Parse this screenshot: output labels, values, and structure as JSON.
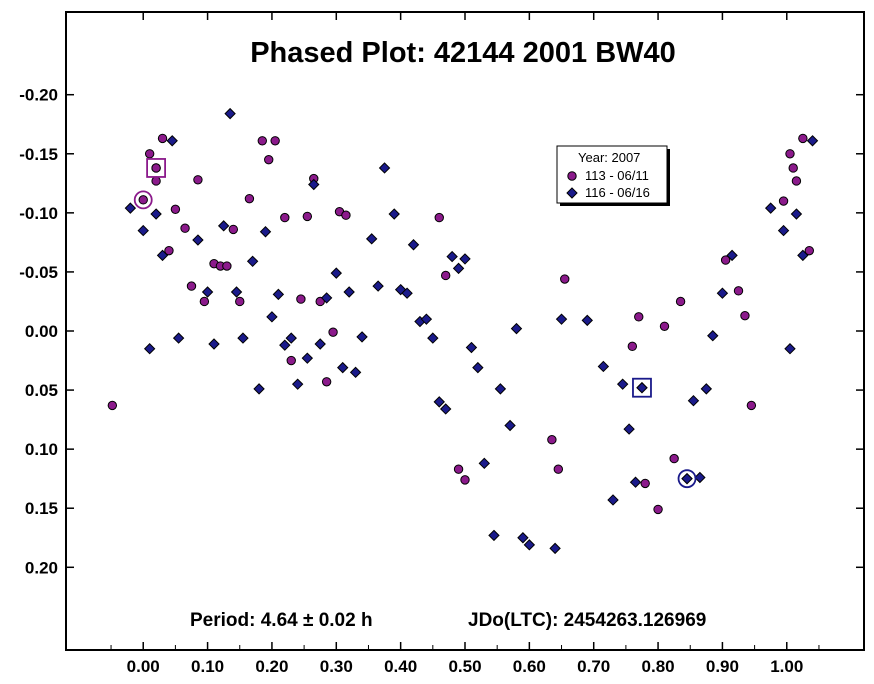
{
  "chart_data": {
    "type": "scatter",
    "title": "Phased Plot: 42144 2001 BW40",
    "footer_period": "Period: 4.64 ± 0.02 h",
    "footer_epoch": "JDo(LTC): 2454263.126969",
    "xlim": [
      -0.12,
      1.12
    ],
    "ylim": [
      -0.27,
      0.27
    ],
    "y_inverted": true,
    "x_ticks": [
      "0.00",
      "0.10",
      "0.20",
      "0.30",
      "0.40",
      "0.50",
      "0.60",
      "0.70",
      "0.80",
      "0.90",
      "1.00"
    ],
    "x_tick_values": [
      0,
      0.1,
      0.2,
      0.3,
      0.4,
      0.5,
      0.6,
      0.7,
      0.8,
      0.9,
      1.0
    ],
    "y_ticks": [
      "-0.20",
      "-0.15",
      "-0.10",
      "-0.05",
      "0.00",
      "0.05",
      "0.10",
      "0.15",
      "0.20"
    ],
    "y_tick_values": [
      -0.2,
      -0.15,
      -0.1,
      -0.05,
      0,
      0.05,
      0.1,
      0.15,
      0.2
    ],
    "grid": false,
    "legend": {
      "title": "Year: 2007",
      "placement": "upper-center-right",
      "entries": [
        {
          "label": "113 - 06/11",
          "marker": "circle",
          "color": "#8B1A8B"
        },
        {
          "label": "116 - 06/16",
          "marker": "diamond",
          "color": "#1A1A8A"
        }
      ]
    },
    "series": [
      {
        "name": "113 - 06/11",
        "marker": "circle",
        "color": "#8B1A8B",
        "points": [
          [
            -0.048,
            0.063
          ],
          [
            0.01,
            -0.15
          ],
          [
            0.02,
            -0.138
          ],
          [
            0.02,
            -0.127
          ],
          [
            0.03,
            -0.163
          ],
          [
            0.04,
            -0.068
          ],
          [
            0.05,
            -0.103
          ],
          [
            0.065,
            -0.087
          ],
          [
            0.075,
            -0.038
          ],
          [
            0.085,
            -0.128
          ],
          [
            0.095,
            -0.025
          ],
          [
            0.11,
            -0.057
          ],
          [
            0.12,
            -0.055
          ],
          [
            0.13,
            -0.055
          ],
          [
            0.14,
            -0.086
          ],
          [
            0.15,
            -0.025
          ],
          [
            0.165,
            -0.112
          ],
          [
            0.185,
            -0.161
          ],
          [
            0.195,
            -0.145
          ],
          [
            0.205,
            -0.161
          ],
          [
            0.22,
            -0.096
          ],
          [
            0.23,
            0.025
          ],
          [
            0.245,
            -0.027
          ],
          [
            0.255,
            -0.097
          ],
          [
            0.265,
            -0.129
          ],
          [
            0.275,
            -0.025
          ],
          [
            0.285,
            0.043
          ],
          [
            0.295,
            0.001
          ],
          [
            0.305,
            -0.101
          ],
          [
            0.315,
            -0.098
          ],
          [
            0.46,
            -0.096
          ],
          [
            0.47,
            -0.047
          ],
          [
            0.49,
            0.117
          ],
          [
            0.5,
            0.126
          ],
          [
            0.635,
            0.092
          ],
          [
            0.645,
            0.117
          ],
          [
            0.655,
            -0.044
          ],
          [
            0.76,
            0.013
          ],
          [
            0.77,
            -0.012
          ],
          [
            0.78,
            0.129
          ],
          [
            0.8,
            0.151
          ],
          [
            0.81,
            -0.004
          ],
          [
            0.825,
            0.108
          ],
          [
            0.835,
            -0.025
          ],
          [
            0.905,
            -0.06
          ],
          [
            0.925,
            -0.034
          ],
          [
            0.935,
            -0.013
          ],
          [
            0.945,
            0.063
          ],
          [
            0.995,
            -0.11
          ],
          [
            1.005,
            -0.15
          ],
          [
            1.01,
            -0.138
          ],
          [
            1.015,
            -0.127
          ],
          [
            1.025,
            -0.163
          ],
          [
            1.035,
            -0.068
          ]
        ],
        "highlight_circle": [
          0.0,
          -0.111
        ],
        "highlight_square": [
          0.02,
          -0.138
        ]
      },
      {
        "name": "116 - 06/16",
        "marker": "diamond",
        "color": "#1A1A8A",
        "points": [
          [
            -0.02,
            -0.104
          ],
          [
            0.0,
            -0.085
          ],
          [
            0.01,
            0.015
          ],
          [
            0.02,
            -0.099
          ],
          [
            0.03,
            -0.064
          ],
          [
            0.045,
            -0.161
          ],
          [
            0.055,
            0.006
          ],
          [
            0.085,
            -0.077
          ],
          [
            0.1,
            -0.033
          ],
          [
            0.11,
            0.011
          ],
          [
            0.125,
            -0.089
          ],
          [
            0.135,
            -0.184
          ],
          [
            0.145,
            -0.033
          ],
          [
            0.155,
            0.006
          ],
          [
            0.17,
            -0.059
          ],
          [
            0.18,
            0.049
          ],
          [
            0.19,
            -0.084
          ],
          [
            0.2,
            -0.012
          ],
          [
            0.21,
            -0.031
          ],
          [
            0.22,
            0.012
          ],
          [
            0.23,
            0.006
          ],
          [
            0.24,
            0.045
          ],
          [
            0.255,
            0.023
          ],
          [
            0.265,
            -0.124
          ],
          [
            0.275,
            0.011
          ],
          [
            0.285,
            -0.028
          ],
          [
            0.3,
            -0.049
          ],
          [
            0.31,
            0.031
          ],
          [
            0.32,
            -0.033
          ],
          [
            0.33,
            0.035
          ],
          [
            0.34,
            0.005
          ],
          [
            0.355,
            -0.078
          ],
          [
            0.365,
            -0.038
          ],
          [
            0.375,
            -0.138
          ],
          [
            0.39,
            -0.099
          ],
          [
            0.4,
            -0.035
          ],
          [
            0.41,
            -0.032
          ],
          [
            0.42,
            -0.073
          ],
          [
            0.43,
            -0.008
          ],
          [
            0.44,
            -0.01
          ],
          [
            0.45,
            0.006
          ],
          [
            0.46,
            0.06
          ],
          [
            0.47,
            0.066
          ],
          [
            0.48,
            -0.063
          ],
          [
            0.49,
            -0.053
          ],
          [
            0.5,
            -0.061
          ],
          [
            0.51,
            0.014
          ],
          [
            0.52,
            0.031
          ],
          [
            0.53,
            0.112
          ],
          [
            0.545,
            0.173
          ],
          [
            0.555,
            0.049
          ],
          [
            0.57,
            0.08
          ],
          [
            0.58,
            -0.002
          ],
          [
            0.59,
            0.175
          ],
          [
            0.6,
            0.181
          ],
          [
            0.64,
            0.184
          ],
          [
            0.65,
            -0.01
          ],
          [
            0.69,
            -0.009
          ],
          [
            0.715,
            0.03
          ],
          [
            0.73,
            0.143
          ],
          [
            0.745,
            0.045
          ],
          [
            0.755,
            0.083
          ],
          [
            0.765,
            0.128
          ],
          [
            0.775,
            0.048
          ],
          [
            0.845,
            0.125
          ],
          [
            0.855,
            0.059
          ],
          [
            0.865,
            0.124
          ],
          [
            0.875,
            0.049
          ],
          [
            0.885,
            0.004
          ],
          [
            0.9,
            -0.032
          ],
          [
            0.915,
            -0.064
          ],
          [
            0.975,
            -0.104
          ],
          [
            0.995,
            -0.085
          ],
          [
            1.005,
            0.015
          ],
          [
            1.015,
            -0.099
          ],
          [
            1.025,
            -0.064
          ],
          [
            1.04,
            -0.161
          ]
        ],
        "highlight_circle": [
          0.845,
          0.125
        ],
        "highlight_square": [
          0.775,
          0.048
        ]
      }
    ]
  }
}
